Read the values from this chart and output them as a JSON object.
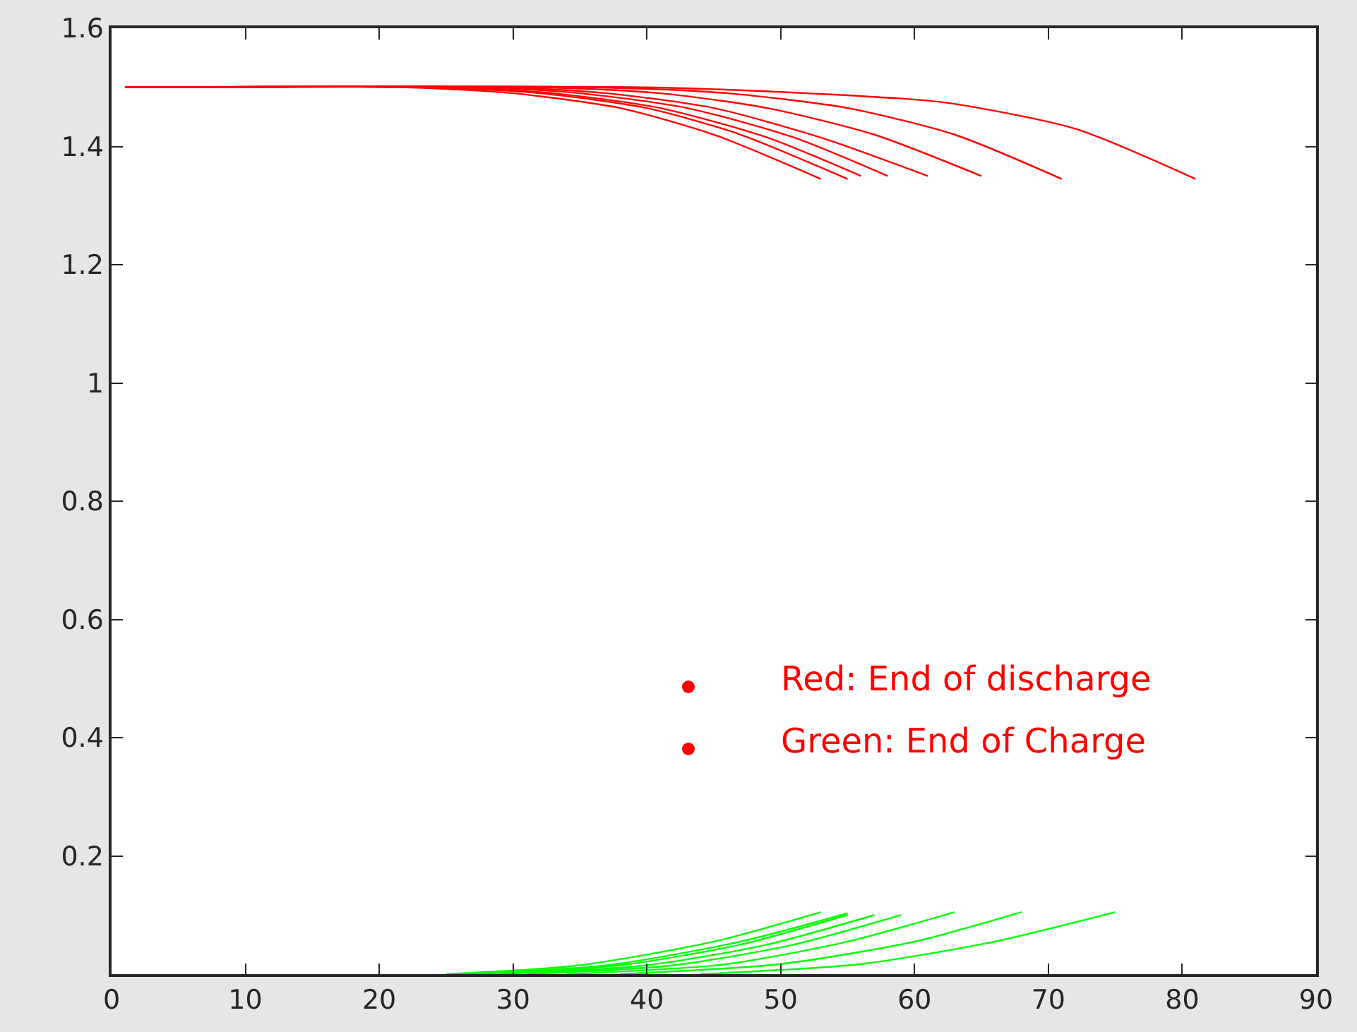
{
  "chart_data": {
    "type": "line",
    "xlim": [
      0,
      90
    ],
    "ylim": [
      0,
      1.6
    ],
    "xticks": [
      0,
      10,
      20,
      30,
      40,
      50,
      60,
      70,
      80,
      90
    ],
    "yticks": [
      0.2,
      0.4,
      0.6,
      0.8,
      1,
      1.2,
      1.4,
      1.6
    ],
    "grid": false,
    "marker": "none",
    "line_style": "solid",
    "annotations": [
      "Red: End of discharge",
      "Green: End of Charge"
    ],
    "series": [
      {
        "color": "#ff0000",
        "x": [
          1,
          22,
          30,
          38,
          45,
          53
        ],
        "values": [
          1.5,
          1.5,
          1.49,
          1.465,
          1.42,
          1.345
        ]
      },
      {
        "color": "#ff0000",
        "x": [
          1,
          24,
          32,
          40,
          47,
          55
        ],
        "values": [
          1.5,
          1.5,
          1.49,
          1.465,
          1.42,
          1.345
        ]
      },
      {
        "color": "#ff0000",
        "x": [
          1,
          25,
          33,
          41,
          49,
          56
        ],
        "values": [
          1.5,
          1.5,
          1.49,
          1.465,
          1.415,
          1.35
        ]
      },
      {
        "color": "#ff0000",
        "x": [
          1,
          27,
          35,
          43,
          51,
          58
        ],
        "values": [
          1.5,
          1.5,
          1.49,
          1.465,
          1.415,
          1.35
        ]
      },
      {
        "color": "#ff0000",
        "x": [
          1,
          29,
          37,
          45,
          53,
          61
        ],
        "values": [
          1.5,
          1.5,
          1.49,
          1.465,
          1.415,
          1.35
        ]
      },
      {
        "color": "#ff0000",
        "x": [
          1,
          32,
          41,
          49,
          57,
          65
        ],
        "values": [
          1.5,
          1.5,
          1.49,
          1.465,
          1.42,
          1.35
        ]
      },
      {
        "color": "#ff0000",
        "x": [
          1,
          36,
          46,
          55,
          63,
          71
        ],
        "values": [
          1.5,
          1.5,
          1.49,
          1.465,
          1.42,
          1.345
        ]
      },
      {
        "color": "#ff0000",
        "x": [
          1,
          40,
          52,
          62,
          72,
          81
        ],
        "values": [
          1.5,
          1.5,
          1.49,
          1.475,
          1.43,
          1.345
        ]
      },
      {
        "color": "#00ff00",
        "x": [
          25,
          35,
          45,
          53
        ],
        "values": [
          0,
          0.015,
          0.055,
          0.105
        ]
      },
      {
        "color": "#00ff00",
        "x": [
          26,
          37,
          47,
          55
        ],
        "values": [
          0,
          0.015,
          0.055,
          0.103
        ]
      },
      {
        "color": "#00ff00",
        "x": [
          27,
          38,
          47,
          55
        ],
        "values": [
          0,
          0.015,
          0.05,
          0.1
        ]
      },
      {
        "color": "#00ff00",
        "x": [
          29,
          40,
          49,
          57
        ],
        "values": [
          0,
          0.015,
          0.05,
          0.1
        ]
      },
      {
        "color": "#00ff00",
        "x": [
          31,
          42,
          51,
          59
        ],
        "values": [
          0,
          0.015,
          0.05,
          0.1
        ]
      },
      {
        "color": "#00ff00",
        "x": [
          34,
          46,
          55,
          63
        ],
        "values": [
          0,
          0.017,
          0.055,
          0.105
        ]
      },
      {
        "color": "#00ff00",
        "x": [
          38,
          50,
          60,
          68
        ],
        "values": [
          0,
          0.017,
          0.055,
          0.105
        ]
      },
      {
        "color": "#00ff00",
        "x": [
          44,
          56,
          66,
          75
        ],
        "values": [
          0,
          0.017,
          0.055,
          0.105
        ]
      }
    ]
  }
}
